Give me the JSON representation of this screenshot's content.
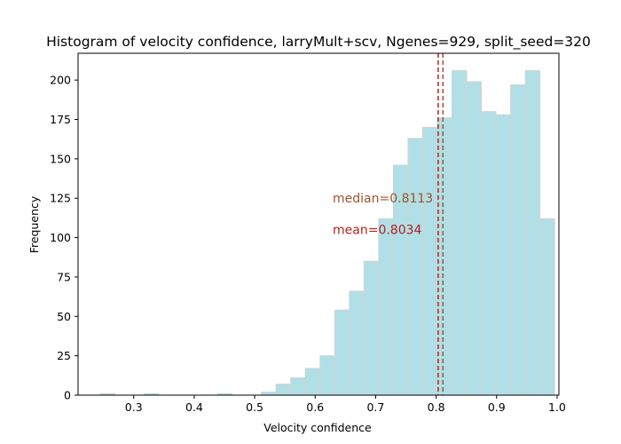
{
  "chart_data": {
    "type": "bar",
    "subtype": "histogram",
    "title": "Histogram of velocity confidence, larryMult+scv, Ngenes=929, split_seed=320",
    "xlabel": "Velocity confidence",
    "ylabel": "Frequency",
    "xlim": [
      0.208,
      1.003
    ],
    "ylim": [
      0,
      217
    ],
    "xticks": [
      0.3,
      0.4,
      0.5,
      0.6,
      0.7,
      0.8,
      0.9,
      1.0
    ],
    "xtick_labels": [
      "0.3",
      "0.4",
      "0.5",
      "0.6",
      "0.7",
      "0.8",
      "0.9",
      "1.0"
    ],
    "yticks": [
      0,
      25,
      50,
      75,
      100,
      125,
      150,
      175,
      200
    ],
    "ytick_labels": [
      "0",
      "25",
      "50",
      "75",
      "100",
      "125",
      "150",
      "175",
      "200"
    ],
    "bin_start": 0.2445,
    "bin_width": 0.02424,
    "counts": [
      1,
      0,
      0,
      1,
      0,
      0,
      0,
      0,
      1,
      0,
      0,
      2,
      7,
      11,
      17,
      25,
      54,
      66,
      85,
      112,
      146,
      163,
      170,
      176,
      206,
      199,
      180,
      178,
      197,
      206,
      112
    ],
    "bar_color": "#b0dfe5",
    "bar_edge_color": "#d3d3d3",
    "grid": false,
    "legend": "none",
    "annotations": [
      {
        "label": "median",
        "text": "median=0.8113",
        "value": 0.8113,
        "color": "#a0522d",
        "line_style": "dashed",
        "text_x": 0.629,
        "text_y": 125
      },
      {
        "label": "mean",
        "text": "mean=0.8034",
        "value": 0.8034,
        "color": "#b22222",
        "line_style": "dashed",
        "text_x": 0.629,
        "text_y": 105
      }
    ]
  }
}
